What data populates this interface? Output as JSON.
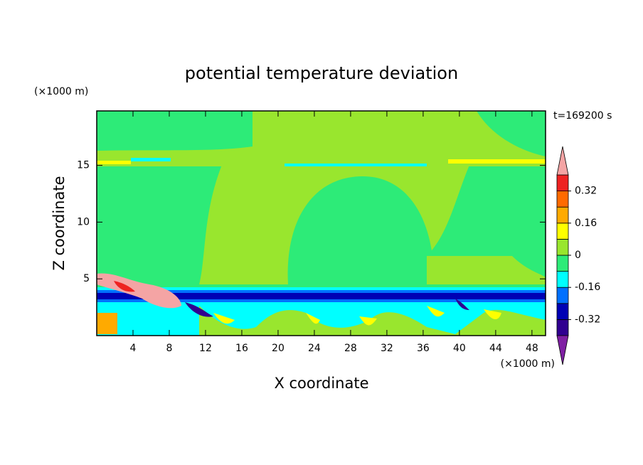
{
  "chart_data": {
    "type": "contour",
    "title": "potential temperature deviation",
    "x_label": "X coordinate",
    "y_label": "Z coordinate",
    "x_unit": "(×1000 m)",
    "y_unit": "(×1000 m)",
    "annotation": "t=169200 s",
    "xlim": [
      0,
      49.5
    ],
    "ylim": [
      0,
      19.8
    ],
    "xticks": [
      4,
      8,
      12,
      16,
      20,
      24,
      28,
      32,
      36,
      40,
      44,
      48
    ],
    "yticks": [
      5,
      10,
      15
    ],
    "colorbar": {
      "levels": [
        -0.4,
        -0.32,
        -0.24,
        -0.16,
        -0.08,
        0,
        0.08,
        0.16,
        0.24,
        0.32,
        0.4
      ],
      "colors": [
        "#300090",
        "#0000b4",
        "#0070ff",
        "#00ffff",
        "#2deb78",
        "#99e62e",
        "#ffff00",
        "#ffaa00",
        "#ff6a00",
        "#ee2222"
      ],
      "under_color": "#7f1fa3",
      "over_color": "#f4a4a4",
      "ticks": [
        -0.32,
        -0.16,
        0,
        0.16,
        0.32
      ]
    }
  }
}
